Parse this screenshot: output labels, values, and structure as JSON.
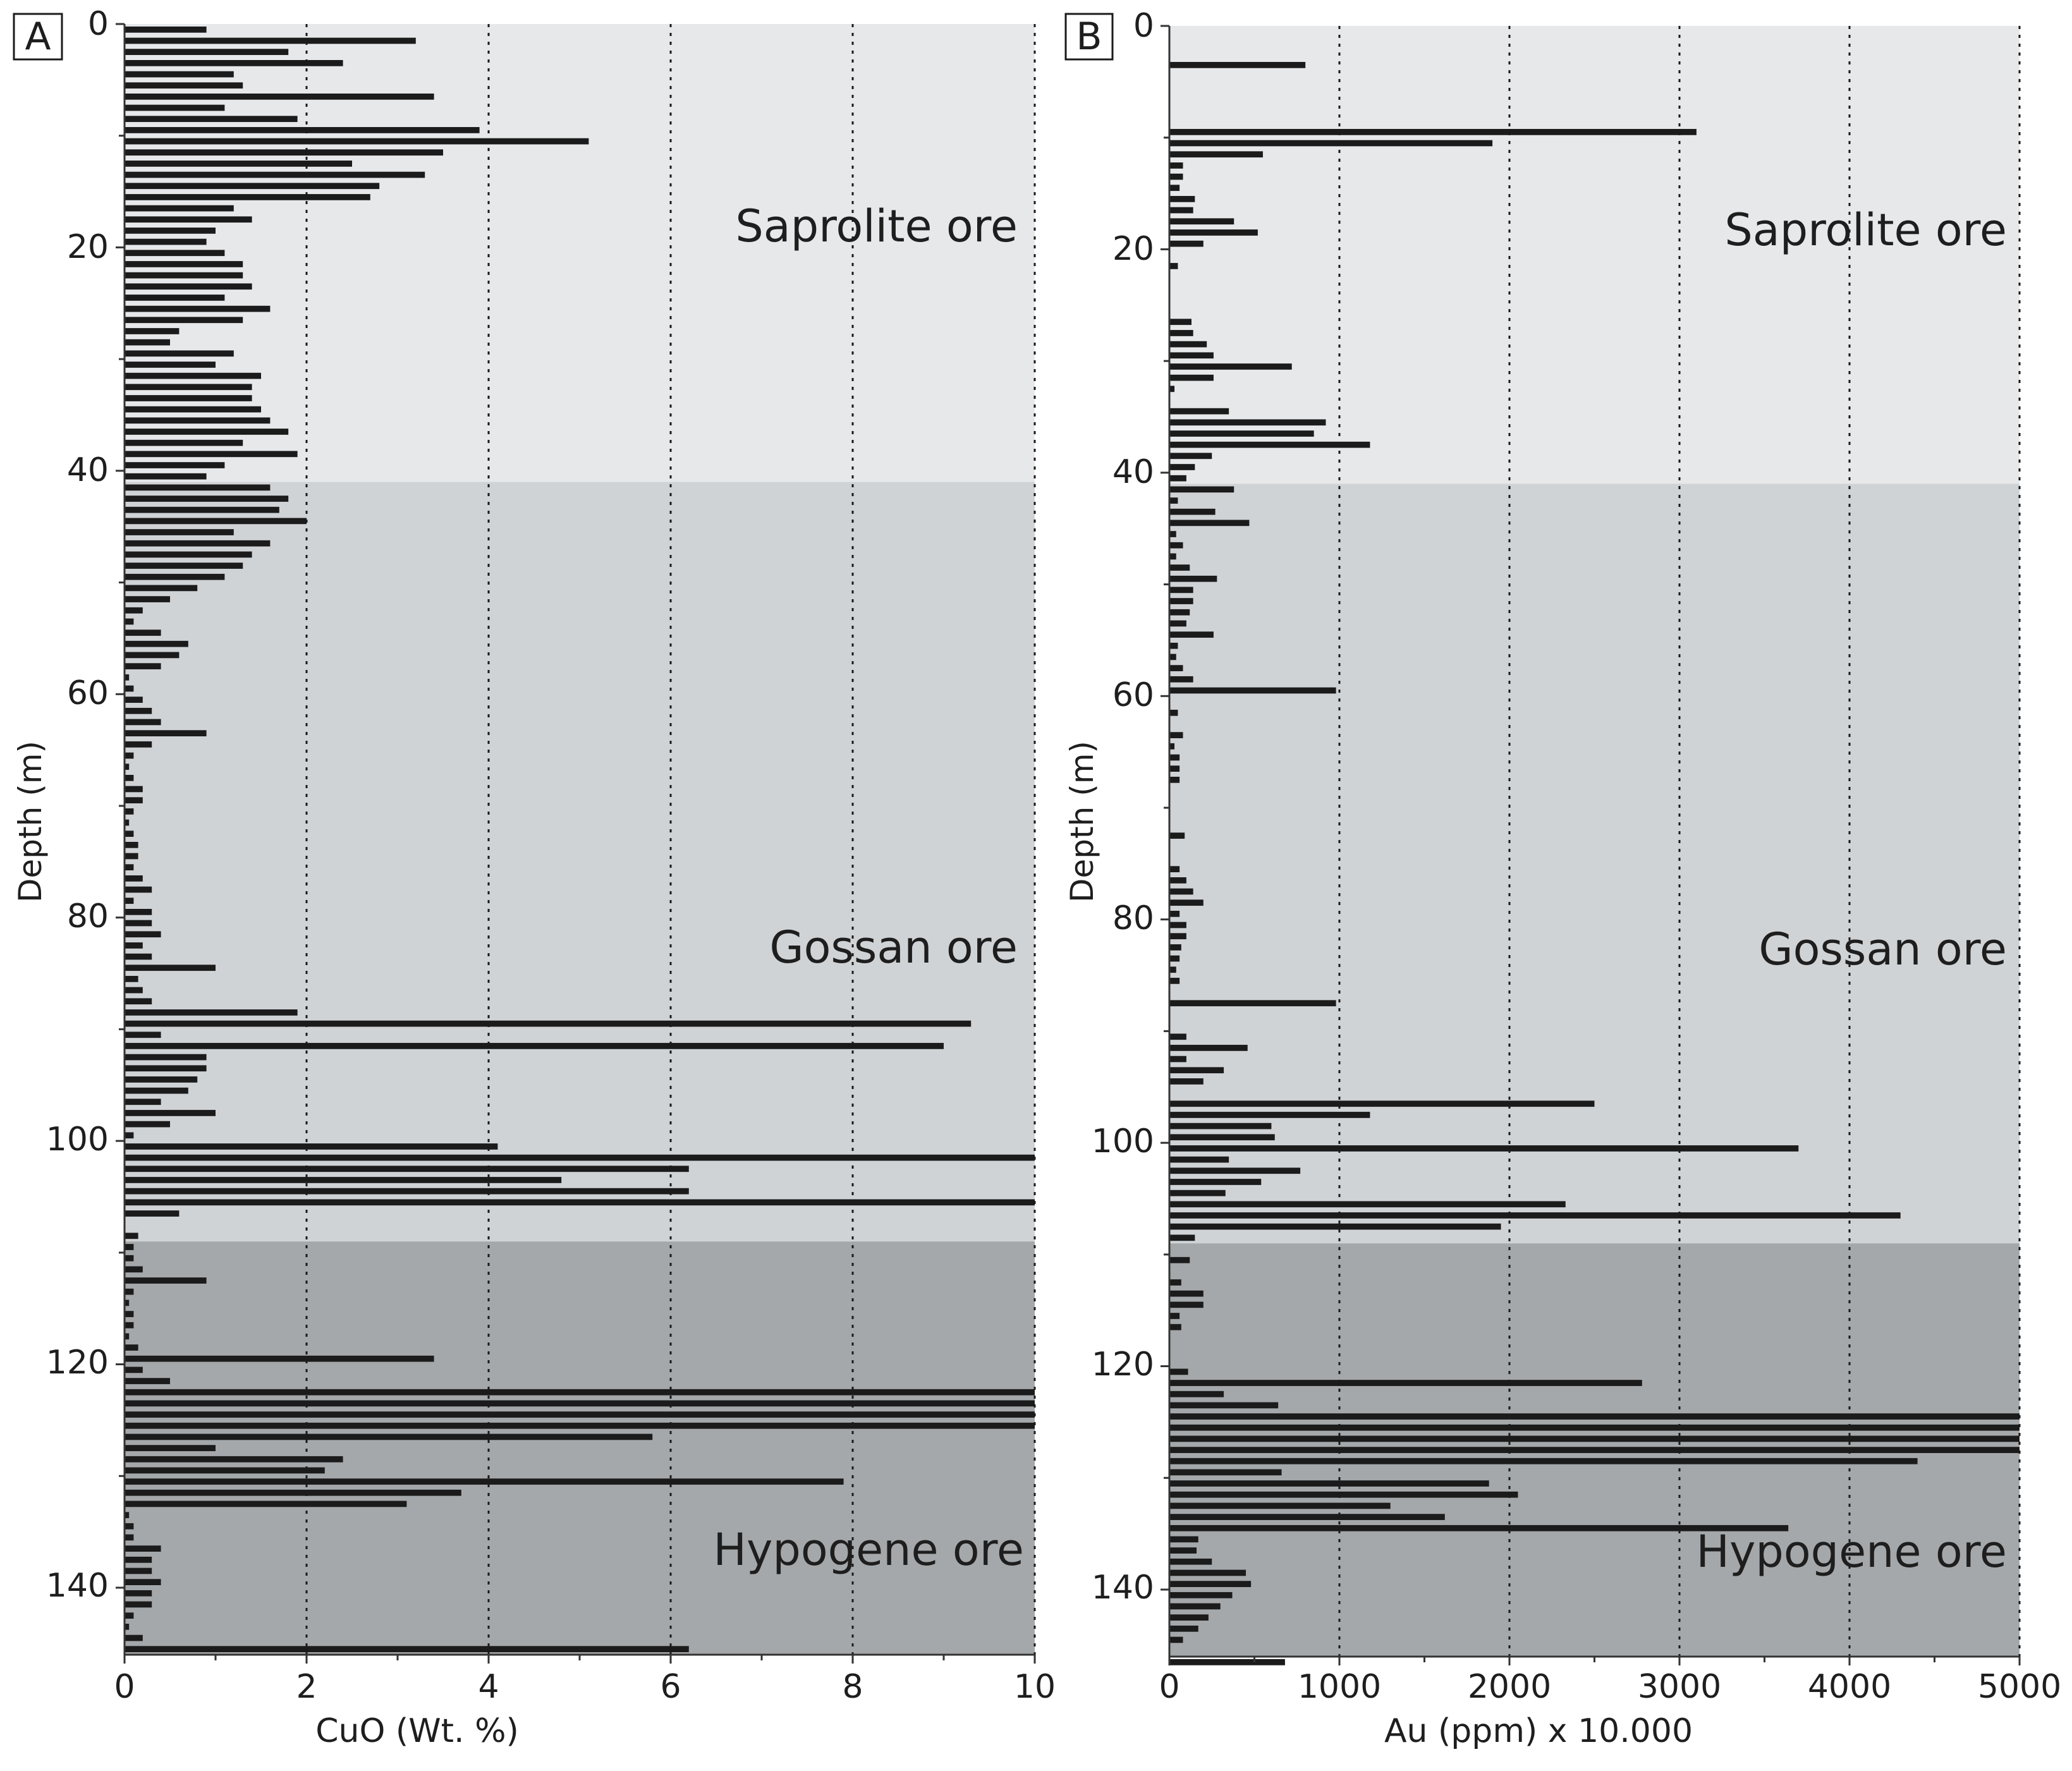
{
  "colors": {
    "saprolite_zone": "#e7e8ea",
    "gossan_zone": "#d0d3d6",
    "hypogene_zone": "#a5a8aa",
    "bar": "#1b1b1b",
    "grid": "#1b1b1b",
    "axis": "#333333"
  },
  "chart_data": [
    {
      "type": "bar",
      "orientation": "horizontal",
      "panel_label": "A",
      "xlabel": "CuO (Wt. %)",
      "ylabel": "Depth (m)",
      "xlim": [
        0,
        10
      ],
      "ylim": [
        0,
        146
      ],
      "y_inverted": true,
      "x_ticks": [
        0,
        2,
        4,
        6,
        8,
        10
      ],
      "y_ticks": [
        0,
        20,
        40,
        60,
        80,
        100,
        120,
        140
      ],
      "grid": "vertical dotted at x = 2, 4, 6, 8, 10",
      "bar_interval_m": 1,
      "zones": [
        {
          "name": "Saprolite ore",
          "from": 0,
          "to": 41
        },
        {
          "name": "Gossan ore",
          "from": 41,
          "to": 109
        },
        {
          "name": "Hypogene ore",
          "from": 109,
          "to": 146
        }
      ],
      "depth_start": 0,
      "values": [
        0.9,
        3.2,
        1.8,
        2.4,
        1.2,
        1.3,
        3.4,
        1.1,
        1.9,
        3.9,
        5.1,
        3.5,
        2.5,
        3.3,
        2.8,
        2.7,
        1.2,
        1.4,
        1.0,
        0.9,
        1.1,
        1.3,
        1.3,
        1.4,
        1.1,
        1.6,
        1.3,
        0.6,
        0.5,
        1.2,
        1.0,
        1.5,
        1.4,
        1.4,
        1.5,
        1.6,
        1.8,
        1.3,
        1.9,
        1.1,
        0.9,
        1.6,
        1.8,
        1.7,
        2.0,
        1.2,
        1.6,
        1.4,
        1.3,
        1.1,
        0.8,
        0.5,
        0.2,
        0.1,
        0.4,
        0.7,
        0.6,
        0.4,
        0.05,
        0.1,
        0.2,
        0.3,
        0.4,
        0.9,
        0.3,
        0.1,
        0.05,
        0.1,
        0.2,
        0.2,
        0.1,
        0.05,
        0.1,
        0.15,
        0.15,
        0.1,
        0.2,
        0.3,
        0.1,
        0.3,
        0.3,
        0.4,
        0.2,
        0.3,
        1.0,
        0.15,
        0.2,
        0.3,
        1.9,
        9.3,
        0.4,
        9.0,
        0.9,
        0.9,
        0.8,
        0.7,
        0.4,
        1.0,
        0.5,
        0.1,
        4.1,
        10.0,
        6.2,
        4.8,
        6.2,
        10.0,
        0.6,
        0.0,
        0.15,
        0.1,
        0.1,
        0.2,
        0.9,
        0.1,
        0.05,
        0.1,
        0.1,
        0.05,
        0.15,
        3.4,
        0.2,
        0.5,
        10.0,
        10.0,
        10.0,
        10.0,
        5.8,
        1.0,
        2.4,
        2.2,
        7.9,
        3.7,
        3.1,
        0.05,
        0.1,
        0.1,
        0.4,
        0.3,
        0.3,
        0.4,
        0.3,
        0.3,
        0.1,
        0.05,
        0.2,
        6.2
      ]
    },
    {
      "type": "bar",
      "orientation": "horizontal",
      "panel_label": "B",
      "xlabel": "Au (ppm) x 10.000",
      "ylabel": "Depth (m)",
      "xlim": [
        0,
        5000
      ],
      "ylim": [
        0,
        146
      ],
      "y_inverted": true,
      "x_ticks": [
        0,
        1000,
        2000,
        3000,
        4000,
        5000
      ],
      "y_ticks": [
        0,
        20,
        40,
        60,
        80,
        100,
        120,
        140
      ],
      "grid": "vertical dotted at x = 1000, 2000, 3000, 4000, 5000",
      "bar_interval_m": 1,
      "zones": [
        {
          "name": "Saprolite ore",
          "from": 0,
          "to": 41
        },
        {
          "name": "Gossan ore",
          "from": 41,
          "to": 109
        },
        {
          "name": "Hypogene ore",
          "from": 109,
          "to": 146
        }
      ],
      "depth_start": 0,
      "values": [
        0,
        0,
        0,
        800,
        0,
        0,
        0,
        0,
        0,
        3100,
        1900,
        550,
        80,
        80,
        60,
        150,
        140,
        380,
        520,
        200,
        0,
        50,
        0,
        0,
        0,
        0,
        130,
        140,
        220,
        260,
        720,
        260,
        30,
        0,
        350,
        920,
        850,
        1180,
        250,
        150,
        100,
        380,
        50,
        270,
        470,
        40,
        80,
        40,
        120,
        280,
        140,
        140,
        120,
        100,
        260,
        50,
        40,
        80,
        140,
        980,
        0,
        50,
        0,
        80,
        30,
        60,
        60,
        60,
        0,
        0,
        0,
        0,
        90,
        0,
        0,
        60,
        100,
        140,
        200,
        60,
        100,
        100,
        70,
        60,
        40,
        60,
        0,
        980,
        0,
        0,
        100,
        460,
        100,
        320,
        200,
        0,
        2500,
        1180,
        600,
        620,
        3700,
        350,
        770,
        540,
        330,
        2330,
        4300,
        1950,
        150,
        0,
        120,
        0,
        70,
        200,
        200,
        60,
        70,
        0,
        0,
        0,
        110,
        2780,
        320,
        640,
        5000,
        5000,
        5000,
        5000,
        4400,
        660,
        1880,
        2050,
        1300,
        1620,
        3640,
        170,
        160,
        250,
        450,
        480,
        370,
        300,
        230,
        170,
        80,
        0,
        680
      ]
    }
  ],
  "panels": [
    {
      "label": "A",
      "xlabel": "CuO (Wt. %)",
      "ylabel": "Depth (m)",
      "x_tick_labels": [
        "0",
        "2",
        "4",
        "6",
        "8",
        "10"
      ],
      "y_tick_labels": [
        "0",
        "20",
        "40",
        "60",
        "80",
        "100",
        "120",
        "140"
      ],
      "zone_labels": [
        "Saprolite ore",
        "Gossan ore",
        "Hypogene ore"
      ]
    },
    {
      "label": "B",
      "xlabel": "Au (ppm) x 10.000",
      "ylabel": "Depth (m)",
      "x_tick_labels": [
        "0",
        "1000",
        "2000",
        "3000",
        "4000",
        "5000"
      ],
      "y_tick_labels": [
        "0",
        "20",
        "40",
        "60",
        "80",
        "100",
        "120",
        "140"
      ],
      "zone_labels": [
        "Saprolite ore",
        "Gossan ore",
        "Hypogene ore"
      ]
    }
  ]
}
